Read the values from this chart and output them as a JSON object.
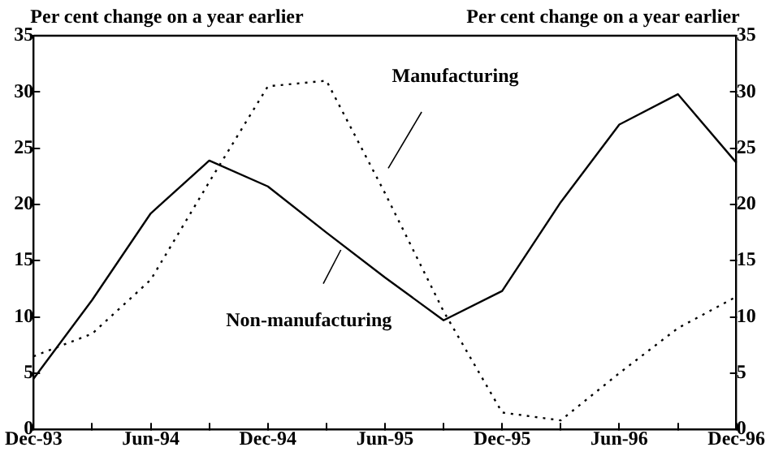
{
  "chart_data": {
    "type": "line",
    "ylabel": "Per cent change on a year earlier",
    "y2label": "Per cent change on a year earlier",
    "categories": [
      "Dec-93",
      null,
      "Jun-94",
      null,
      "Dec-94",
      null,
      "Jun-95",
      null,
      "Dec-95",
      null,
      "Jun-96",
      null,
      "Dec-96"
    ],
    "series": [
      {
        "name": "Non-manufacturing",
        "color": "#000000",
        "line_style": "solid",
        "values": [
          4.5,
          11.5,
          19.2,
          23.9,
          21.6,
          17.5,
          13.5,
          9.7,
          12.3,
          20.2,
          27.1,
          29.8,
          23.7
        ]
      },
      {
        "name": "Manufacturing",
        "color": "#000000",
        "line_style": "dotted",
        "values": [
          6.5,
          8.5,
          13.3,
          22,
          30.5,
          31,
          21,
          10.5,
          1.5,
          0.8,
          5,
          9,
          11.8
        ]
      }
    ],
    "ylim": [
      0,
      35
    ],
    "yticks": [
      0,
      5,
      10,
      15,
      20,
      25,
      30,
      35
    ],
    "y2lim": [
      0,
      35
    ],
    "y2ticks": [
      0,
      5,
      10,
      15,
      20,
      25,
      30,
      35
    ],
    "grid": false,
    "legend": false,
    "marker": "none"
  }
}
